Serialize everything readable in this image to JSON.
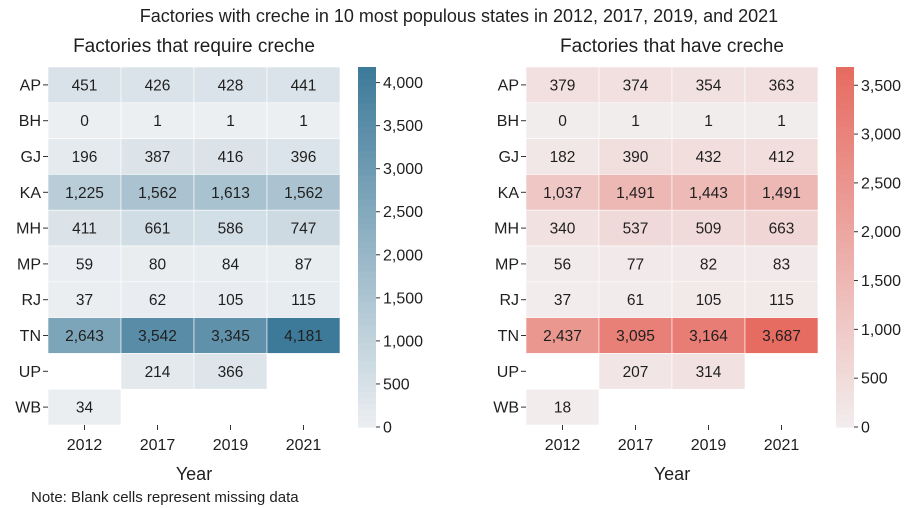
{
  "title": "Factories with creche in 10 most populous states in 2012, 2017, 2019, and 2021",
  "note": "Note: Blank cells represent missing data",
  "chart_data": [
    {
      "type": "heatmap",
      "title": "Factories that require creche",
      "xlabel": "Year",
      "ylabel": "",
      "x": [
        "2012",
        "2017",
        "2019",
        "2021"
      ],
      "y": [
        "AP",
        "BH",
        "GJ",
        "KA",
        "MH",
        "MP",
        "RJ",
        "TN",
        "UP",
        "WB"
      ],
      "values": [
        [
          451,
          426,
          428,
          441
        ],
        [
          0,
          1,
          1,
          1
        ],
        [
          196,
          387,
          416,
          396
        ],
        [
          1225,
          1562,
          1613,
          1562
        ],
        [
          411,
          661,
          586,
          747
        ],
        [
          59,
          80,
          84,
          87
        ],
        [
          37,
          62,
          105,
          115
        ],
        [
          2643,
          3542,
          3345,
          4181
        ],
        [
          null,
          214,
          366,
          null
        ],
        [
          34,
          null,
          null,
          null
        ]
      ],
      "labels": [
        [
          "451",
          "426",
          "428",
          "441"
        ],
        [
          "0",
          "1",
          "1",
          "1"
        ],
        [
          "196",
          "387",
          "416",
          "396"
        ],
        [
          "1,225",
          "1,562",
          "1,613",
          "1,562"
        ],
        [
          "411",
          "661",
          "586",
          "747"
        ],
        [
          "59",
          "80",
          "84",
          "87"
        ],
        [
          "37",
          "62",
          "105",
          "115"
        ],
        [
          "2,643",
          "3,542",
          "3,345",
          "4,181"
        ],
        [
          "",
          "214",
          "366",
          ""
        ],
        [
          "34",
          "",
          "",
          ""
        ]
      ],
      "colorbar": {
        "range": [
          0,
          4181
        ],
        "ticks": [
          0,
          500,
          1000,
          1500,
          2000,
          2500,
          3000,
          3500,
          4000
        ],
        "tick_labels": [
          "0",
          "500",
          "1,000",
          "1,500",
          "2,000",
          "2,500",
          "3,000",
          "3,500",
          "4,000"
        ],
        "color_low": "#eceff2",
        "color_high": "#3d7a99"
      }
    },
    {
      "type": "heatmap",
      "title": "Factories that have creche",
      "xlabel": "Year",
      "ylabel": "",
      "x": [
        "2012",
        "2017",
        "2019",
        "2021"
      ],
      "y": [
        "AP",
        "BH",
        "GJ",
        "KA",
        "MH",
        "MP",
        "RJ",
        "TN",
        "UP",
        "WB"
      ],
      "values": [
        [
          379,
          374,
          354,
          363
        ],
        [
          0,
          1,
          1,
          1
        ],
        [
          182,
          390,
          432,
          412
        ],
        [
          1037,
          1491,
          1443,
          1491
        ],
        [
          340,
          537,
          509,
          663
        ],
        [
          56,
          77,
          82,
          83
        ],
        [
          37,
          61,
          105,
          115
        ],
        [
          2437,
          3095,
          3164,
          3687
        ],
        [
          null,
          207,
          314,
          null
        ],
        [
          18,
          null,
          null,
          null
        ]
      ],
      "labels": [
        [
          "379",
          "374",
          "354",
          "363"
        ],
        [
          "0",
          "1",
          "1",
          "1"
        ],
        [
          "182",
          "390",
          "432",
          "412"
        ],
        [
          "1,037",
          "1,491",
          "1,443",
          "1,491"
        ],
        [
          "340",
          "537",
          "509",
          "663"
        ],
        [
          "56",
          "77",
          "82",
          "83"
        ],
        [
          "37",
          "61",
          "105",
          "115"
        ],
        [
          "2,437",
          "3,095",
          "3,164",
          "3,687"
        ],
        [
          "",
          "207",
          "314",
          ""
        ],
        [
          "18",
          "",
          "",
          ""
        ]
      ],
      "colorbar": {
        "range": [
          0,
          3687
        ],
        "ticks": [
          0,
          500,
          1000,
          1500,
          2000,
          2500,
          3000,
          3500
        ],
        "tick_labels": [
          "0",
          "500",
          "1,000",
          "1,500",
          "2,000",
          "2,500",
          "3,000",
          "3,500"
        ],
        "color_low": "#f2eded",
        "color_high": "#e66b61"
      }
    }
  ]
}
